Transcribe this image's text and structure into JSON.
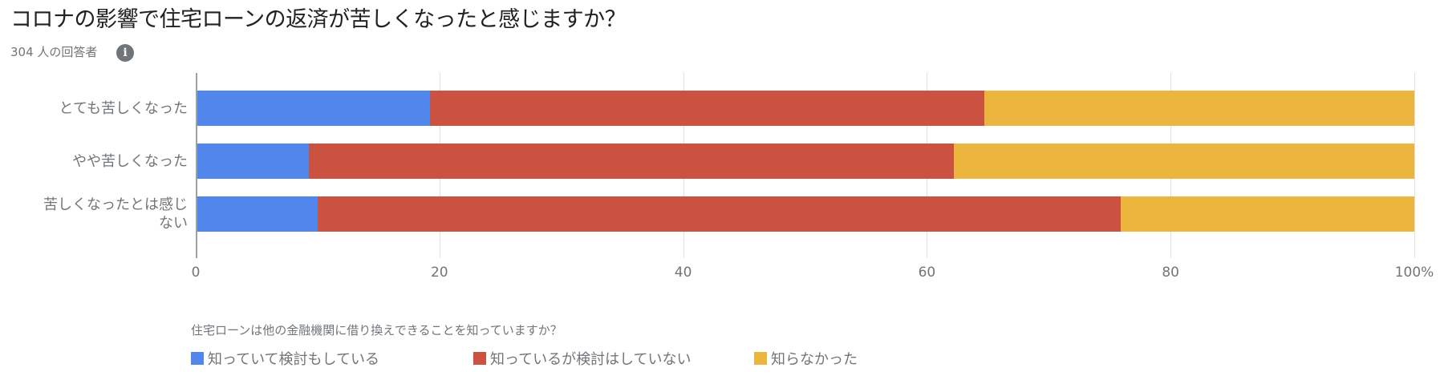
{
  "header": {
    "title": "コロナの影響で住宅ローンの返済が苦しくなったと感じますか？",
    "respondents": "304 人の回答者",
    "info_icon": "info-icon"
  },
  "chart_data": {
    "type": "bar",
    "orientation": "horizontal",
    "stacked": "percent",
    "title": "コロナの影響で住宅ローンの返済が苦しくなったと感じますか？",
    "subtitle": "304 人の回答者",
    "categories": [
      "とても苦しくなった",
      "やや苦しくなった",
      "苦しくなったとは感じない"
    ],
    "category_display_lines": [
      [
        "とても苦しくなった"
      ],
      [
        "やや苦しくなった"
      ],
      [
        "苦しくなったとは感じ",
        "ない"
      ]
    ],
    "series": [
      {
        "name": "知っていて検討もしている",
        "color": "#5186EC",
        "values": [
          19.2,
          9.3,
          10.0
        ]
      },
      {
        "name": "知っているが検討はしていない",
        "color": "#CB5141",
        "values": [
          45.5,
          52.9,
          65.9
        ]
      },
      {
        "name": "知らなかった",
        "color": "#EBB53E",
        "values": [
          35.3,
          37.8,
          24.1
        ]
      }
    ],
    "xlabel": "",
    "ylabel": "",
    "xlim": [
      0,
      100
    ],
    "x_ticks": [
      "0",
      "20",
      "40",
      "60",
      "80",
      "100%"
    ],
    "grid": true,
    "legend_title": "住宅ローンは他の金融機関に借り換えできることを知っていますか？",
    "legend_position": "bottom"
  }
}
